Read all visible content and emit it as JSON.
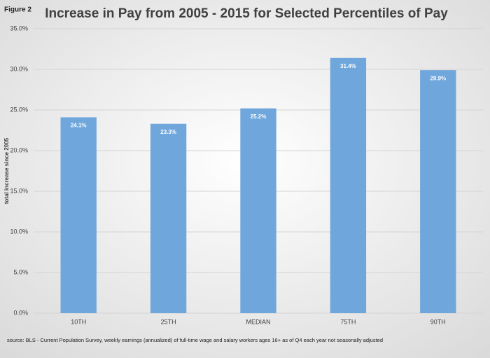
{
  "chart_data": {
    "type": "bar",
    "figure_label": "Figure 2",
    "title": "Increase in Pay from 2005 - 2015 for Selected Percentiles of Pay",
    "y_label": "total increase since 2005",
    "categories": [
      "10TH",
      "25TH",
      "MEDIAN",
      "75TH",
      "90TH"
    ],
    "values": [
      24.1,
      23.3,
      25.2,
      31.4,
      29.9
    ],
    "value_labels": [
      "24.1%",
      "23.3%",
      "25.2%",
      "31.4%",
      "29.9%"
    ],
    "color": "#6fa6dc",
    "ylim": [
      0,
      35
    ],
    "yticks": [
      {
        "value": 0,
        "label": "0.0%"
      },
      {
        "value": 5,
        "label": "5.0%"
      },
      {
        "value": 10,
        "label": "10.0%"
      },
      {
        "value": 15,
        "label": "15.0%"
      },
      {
        "value": 20,
        "label": "20.0%"
      },
      {
        "value": 25,
        "label": "25.0%"
      },
      {
        "value": 30,
        "label": "30.0%"
      },
      {
        "value": 35,
        "label": "35.0%"
      }
    ],
    "grid": true,
    "source": "source: BLS - Current Population Survey, weekly earnings (annualized) of  full-time wage and salary workers ages 16+ as of Q4 each year not seasonally adjusted"
  }
}
